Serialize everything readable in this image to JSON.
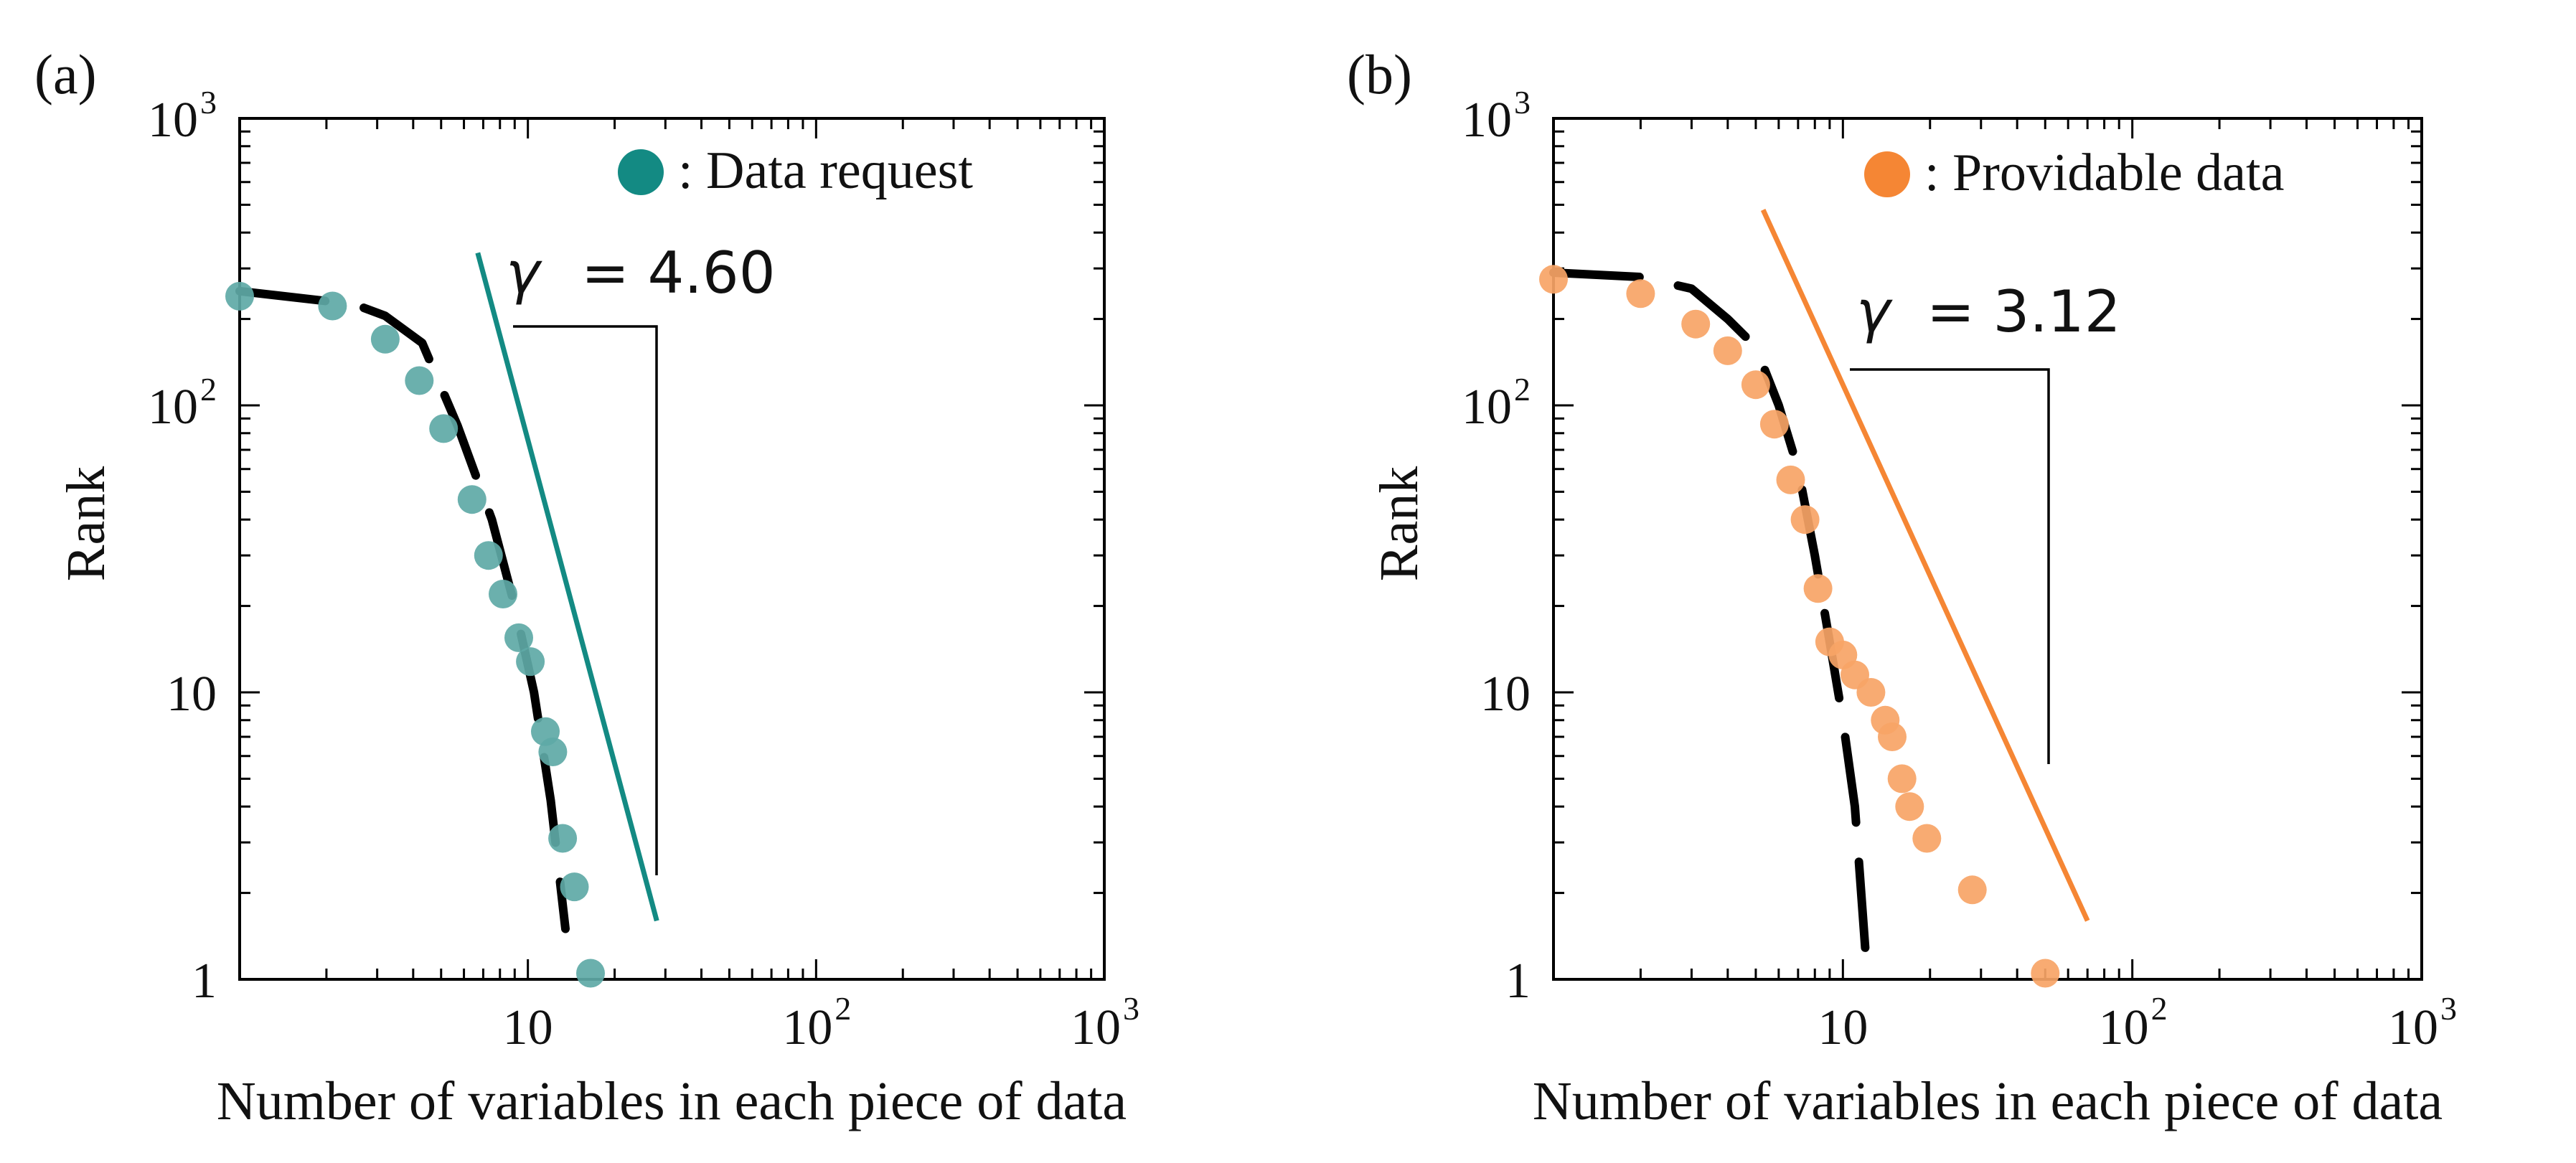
{
  "chart_data": [
    {
      "panel_label": "(a)",
      "type": "scatter",
      "xscale": "log",
      "yscale": "log",
      "xlim": [
        1,
        1000
      ],
      "ylim": [
        1,
        1000
      ],
      "xlabel": "Number of variables in each piece of data",
      "ylabel": "Rank",
      "x_tick_labels": [
        "10",
        "10",
        "10"
      ],
      "x_tick_exponents": [
        "",
        "2",
        "3"
      ],
      "y_tick_labels": [
        "1",
        "10",
        "10",
        "10"
      ],
      "y_tick_exponents": [
        "",
        "",
        "2",
        "3"
      ],
      "legend": {
        "label": ": Data request",
        "color": "#138a83",
        "position": "top-right"
      },
      "gamma_label": "γ",
      "gamma_value": "= 4.60",
      "series": [
        {
          "name": "Data request",
          "color": "#5ea9a6",
          "points": [
            [
              1.0,
              240
            ],
            [
              2.1,
              222
            ],
            [
              3.2,
              170
            ],
            [
              4.2,
              122
            ],
            [
              5.1,
              83
            ],
            [
              6.4,
              47
            ],
            [
              7.3,
              30
            ],
            [
              8.2,
              22
            ],
            [
              9.3,
              15.5
            ],
            [
              10.2,
              12.8
            ],
            [
              11.5,
              7.3
            ],
            [
              12.2,
              6.2
            ],
            [
              13.2,
              3.1
            ],
            [
              14.5,
              2.1
            ],
            [
              16.5,
              1.05
            ]
          ]
        }
      ],
      "power_law_fit": {
        "color": "#138a83",
        "x": [
          6.7,
          28
        ],
        "y": [
          340,
          1.6
        ]
      },
      "dashed_fit": [
        [
          1.0,
          250
        ],
        [
          2.5,
          225
        ],
        [
          3.2,
          205
        ],
        [
          4.3,
          165
        ],
        [
          5.7,
          85
        ],
        [
          7.5,
          40
        ],
        [
          9.0,
          20
        ],
        [
          10.5,
          10
        ],
        [
          12.0,
          4.2
        ],
        [
          13.5,
          1.5
        ]
      ]
    },
    {
      "panel_label": "(b)",
      "type": "scatter",
      "xscale": "log",
      "yscale": "log",
      "xlim": [
        1,
        1000
      ],
      "ylim": [
        1,
        1000
      ],
      "xlabel": "Number of variables in each piece of data",
      "ylabel": "Rank",
      "x_tick_labels": [
        "10",
        "10",
        "10"
      ],
      "x_tick_exponents": [
        "",
        "2",
        "3"
      ],
      "y_tick_labels": [
        "1",
        "10",
        "10",
        "10"
      ],
      "y_tick_exponents": [
        "",
        "",
        "2",
        "3"
      ],
      "legend": {
        "label": ": Providable data",
        "color": "#f58634",
        "position": "top-right"
      },
      "gamma_label": "γ",
      "gamma_value": "= 3.12",
      "series": [
        {
          "name": "Providable data",
          "color": "#f7a466",
          "points": [
            [
              1.0,
              275
            ],
            [
              2.0,
              245
            ],
            [
              3.1,
              192
            ],
            [
              4.0,
              155
            ],
            [
              5.0,
              118
            ],
            [
              5.8,
              86
            ],
            [
              6.6,
              55
            ],
            [
              7.4,
              40
            ],
            [
              8.2,
              23
            ],
            [
              9.0,
              15
            ],
            [
              10.0,
              13.5
            ],
            [
              11.0,
              11.5
            ],
            [
              12.5,
              10
            ],
            [
              14.0,
              8
            ],
            [
              14.8,
              7
            ],
            [
              16.0,
              5
            ],
            [
              17.0,
              4
            ],
            [
              19.5,
              3.1
            ],
            [
              28.0,
              2.05
            ],
            [
              50.0,
              1.05
            ]
          ]
        }
      ],
      "power_law_fit": {
        "color": "#f58634",
        "x": [
          5.3,
          70
        ],
        "y": [
          480,
          1.6
        ]
      },
      "dashed_fit": [
        [
          1.0,
          290
        ],
        [
          2.0,
          280
        ],
        [
          3.0,
          255
        ],
        [
          4.0,
          200
        ],
        [
          5.0,
          160
        ],
        [
          6.0,
          100
        ],
        [
          7.0,
          60
        ],
        [
          8.0,
          30
        ],
        [
          9.0,
          15
        ],
        [
          10.0,
          8
        ],
        [
          11.0,
          4
        ],
        [
          12.0,
          1.2
        ]
      ]
    }
  ]
}
